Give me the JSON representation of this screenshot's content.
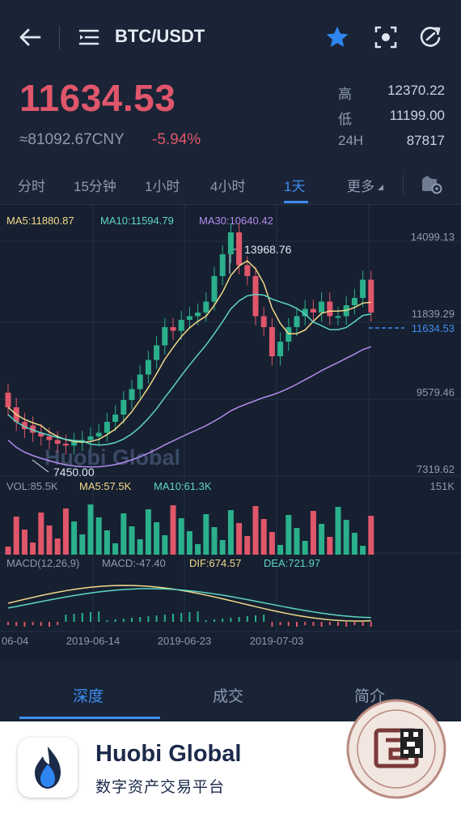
{
  "header": {
    "title": "BTC/USDT",
    "icons": [
      "back-arrow-icon",
      "menu-list-icon",
      "star-icon",
      "screenshot-icon",
      "refresh-icon"
    ]
  },
  "ticker": {
    "last_price": "11634.53",
    "cny_value": "≈81092.67CNY",
    "change_percent": "-5.94%",
    "high_label": "高",
    "high_value": "12370.22",
    "low_label": "低",
    "low_value": "11199.00",
    "vol_label": "24H",
    "vol_value": "87817"
  },
  "timeframe_tabs": [
    {
      "label": "分时"
    },
    {
      "label": "15分钟"
    },
    {
      "label": "1小时"
    },
    {
      "label": "4小时"
    },
    {
      "label": "1天"
    },
    {
      "label": "更多"
    }
  ],
  "active_timeframe": "1天",
  "chart_data": {
    "type": "candlestick",
    "ma_legend": {
      "ma5": "MA5:11880.87",
      "ma10": "MA10:11594.79",
      "ma30": "MA30:10640.42"
    },
    "price_axis_labels": [
      "14099.13",
      "11839.29",
      "9579.46",
      "7319.62"
    ],
    "current_price_label": "11634.53",
    "max_marker": "13968.76",
    "min_marker": "7450.00",
    "watermark": "Huobi Global",
    "volume_legend": {
      "vol": "VOL:85.5K",
      "ma5": "MA5:57.5K",
      "ma10": "MA10:61.3K",
      "axis_max": "151K"
    },
    "macd_legend": {
      "params": "MACD(12,26,9)",
      "macd": "MACD:-47.40",
      "dif": "DIF:674.57",
      "dea": "DEA:721.97"
    },
    "date_labels": [
      "06-04",
      "2019-06-14",
      "2019-06-23",
      "2019-07-03"
    ],
    "colors": {
      "up": "#2bb08c",
      "down": "#e0566b",
      "ma5": "#f2d88a",
      "ma10": "#5ed5c4",
      "ma30": "#b58bf0"
    }
  },
  "bottom_tabs": [
    {
      "label": "深度"
    },
    {
      "label": "成交"
    },
    {
      "label": "简介"
    }
  ],
  "footer": {
    "brand": "Huobi Global",
    "slogan": "数字资产交易平台"
  },
  "colors": {
    "accent": "#3f8ef0",
    "down_red": "#e0566b",
    "background": "#162030"
  }
}
